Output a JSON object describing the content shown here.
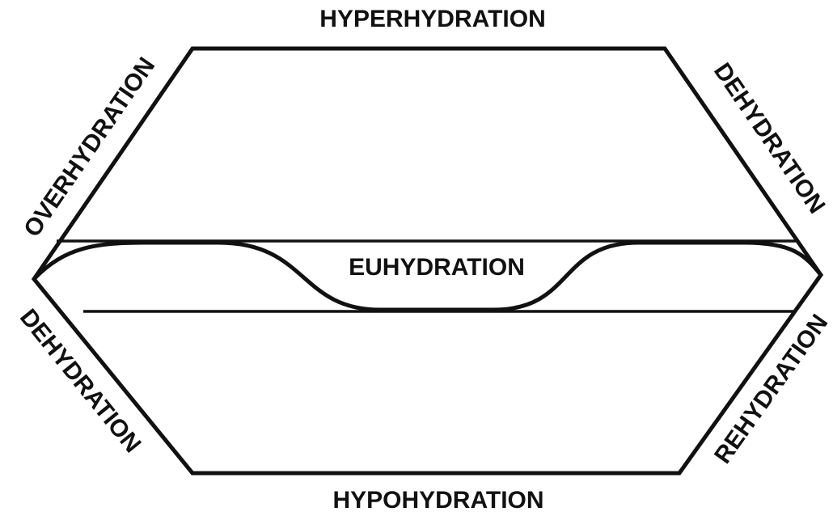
{
  "labels": {
    "top": "HYPERHYDRATION",
    "bottom": "HYPOHYDRATION",
    "center": "EUHYDRATION",
    "upper_left": "OVERHYDRATION",
    "upper_right": "DEHYDRATION",
    "lower_left": "DEHYDRATION",
    "lower_right": "REHYDRATION"
  }
}
